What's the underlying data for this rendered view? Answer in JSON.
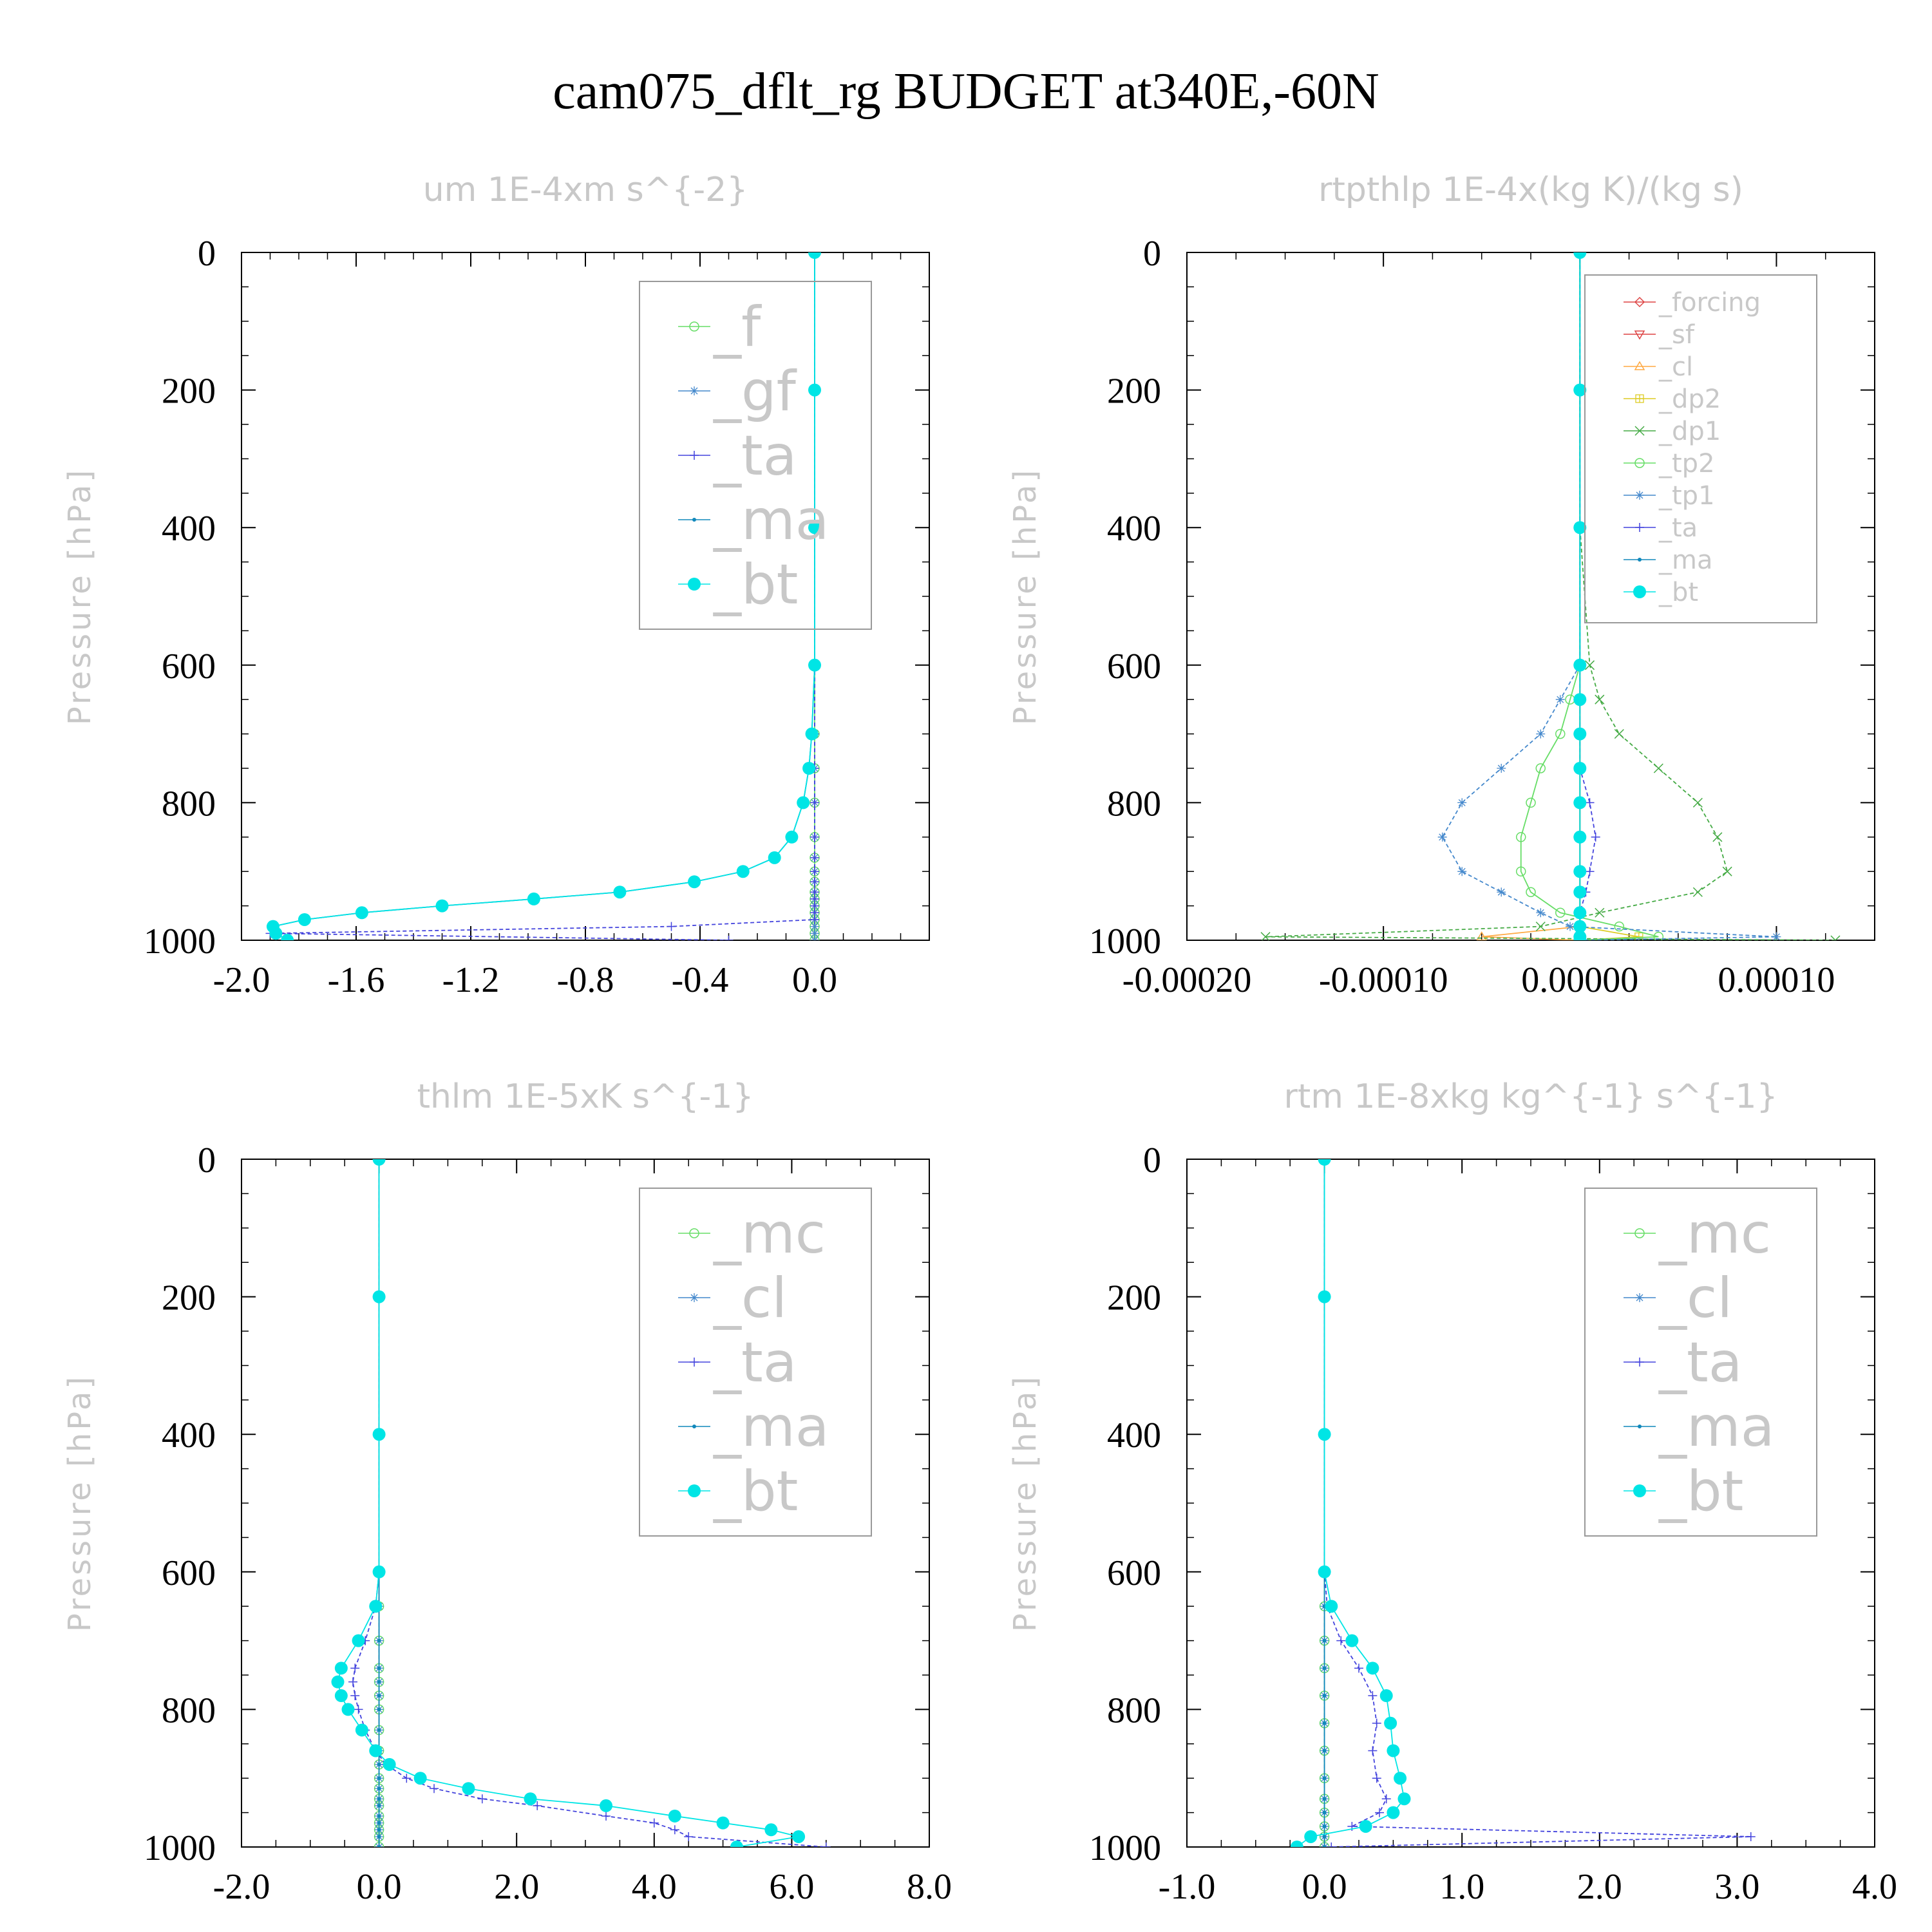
{
  "title": "cam075_dflt_rg  BUDGET at340E,-60N",
  "chart_data": [
    {
      "type": "line",
      "title": "um  1E-4xm s^{-2}",
      "ylabel": "Pressure [hPa]",
      "xlim": [
        -2.0,
        0.4
      ],
      "ylim": [
        1000,
        0
      ],
      "xticks": [
        -2.0,
        -1.6,
        -1.2,
        -0.8,
        -0.4,
        0.0
      ],
      "xtick_labels": [
        "-2.0",
        "-1.6",
        "-1.2",
        "-0.8",
        "-0.4",
        "0.0"
      ],
      "yticks": [
        0,
        200,
        400,
        600,
        800,
        1000
      ],
      "ytick_labels": [
        "0",
        "200",
        "400",
        "600",
        "800",
        "1000"
      ],
      "legend_position": "top-right",
      "y": [
        0,
        200,
        400,
        600,
        700,
        750,
        800,
        850,
        880,
        900,
        915,
        930,
        940,
        950,
        960,
        970,
        980,
        990,
        1000
      ],
      "series": [
        {
          "name": "_f",
          "color": "#66dd66",
          "marker": "circle-open",
          "values": [
            0.0,
            0.0,
            0.0,
            0.0,
            0.0,
            0.0,
            0.0,
            0.0,
            0.0,
            0.0,
            0.0,
            0.0,
            0.0,
            0.0,
            0.0,
            0.0,
            0.0,
            0.0,
            0.0
          ]
        },
        {
          "name": "_gf",
          "color": "#4488cc",
          "marker": "star",
          "values": [
            0.0,
            0.0,
            0.0,
            0.0,
            0.0,
            0.0,
            0.0,
            0.0,
            0.0,
            0.0,
            0.0,
            0.0,
            0.0,
            0.0,
            0.0,
            0.0,
            0.0,
            0.0,
            0.0
          ]
        },
        {
          "name": "_ta",
          "color": "#4444dd",
          "marker": "plus",
          "values": [
            0.0,
            0.0,
            0.0,
            0.0,
            0.0,
            0.0,
            0.0,
            0.0,
            0.0,
            0.0,
            0.0,
            0.0,
            0.0,
            0.0,
            0.0,
            0.0,
            -0.5,
            -1.9,
            -0.3
          ]
        },
        {
          "name": "_ma",
          "color": "#1188bb",
          "marker": "dot",
          "values": [
            0.0,
            0.0,
            0.0,
            0.0,
            -0.01,
            -0.02,
            -0.04,
            -0.08,
            -0.14,
            -0.25,
            -0.42,
            -0.68,
            -0.98,
            -1.3,
            -1.58,
            -1.78,
            -1.89,
            -1.88,
            -1.84
          ]
        },
        {
          "name": "_bt",
          "color": "#00e5e5",
          "marker": "filled-circle",
          "values": [
            0.0,
            0.0,
            0.0,
            0.0,
            -0.01,
            -0.02,
            -0.04,
            -0.08,
            -0.14,
            -0.25,
            -0.42,
            -0.68,
            -0.98,
            -1.3,
            -1.58,
            -1.78,
            -1.89,
            -1.88,
            -1.84
          ]
        }
      ]
    },
    {
      "type": "line",
      "title": "rtpthlp  1E-4x(kg K)/(kg s)",
      "ylabel": "Pressure [hPa]",
      "xlim": [
        -0.0002,
        0.00015
      ],
      "ylim": [
        1000,
        0
      ],
      "xticks": [
        -0.0002,
        -0.0001,
        0.0,
        0.0001
      ],
      "xtick_labels": [
        "-0.00020",
        "-0.00010",
        "0.00000",
        "0.00010"
      ],
      "yticks": [
        0,
        200,
        400,
        600,
        800,
        1000
      ],
      "ytick_labels": [
        "0",
        "200",
        "400",
        "600",
        "800",
        "1000"
      ],
      "legend_position": "top-right",
      "y": [
        0,
        200,
        400,
        600,
        650,
        700,
        750,
        800,
        850,
        900,
        930,
        960,
        980,
        995,
        1000
      ],
      "series": [
        {
          "name": "_forcing",
          "color": "#dd4444",
          "marker": "diamond",
          "values": [
            0,
            0,
            0,
            0,
            0,
            0,
            0,
            0,
            0,
            0,
            0,
            0,
            0,
            0,
            0
          ]
        },
        {
          "name": "_sf",
          "color": "#dd4444",
          "marker": "triangle-down",
          "values": [
            0,
            0,
            0,
            0,
            0,
            0,
            0,
            0,
            0,
            0,
            0,
            0,
            0,
            0,
            0
          ]
        },
        {
          "name": "_cl",
          "color": "#ffaa44",
          "marker": "triangle-up",
          "values": [
            0,
            0,
            0,
            0,
            0,
            0,
            0,
            0,
            0,
            0,
            0,
            0,
            0,
            -5e-05,
            0
          ]
        },
        {
          "name": "_dp2",
          "color": "#ddcc22",
          "marker": "square-plus",
          "values": [
            0,
            0,
            0,
            0,
            0,
            0,
            0,
            0,
            0,
            0,
            0,
            0,
            0,
            3e-05,
            0
          ]
        },
        {
          "name": "_dp1",
          "color": "#44aa44",
          "marker": "cross",
          "values": [
            0,
            0,
            0,
            5e-06,
            1e-05,
            2e-05,
            4e-05,
            6e-05,
            7e-05,
            7.5e-05,
            6e-05,
            1e-05,
            -2e-05,
            -0.00016,
            0.00013
          ]
        },
        {
          "name": "_tp2",
          "color": "#66dd66",
          "marker": "circle-open",
          "values": [
            0,
            0,
            0,
            0,
            -5e-06,
            -1e-05,
            -2e-05,
            -2.5e-05,
            -3e-05,
            -3e-05,
            -2.5e-05,
            -1e-05,
            2e-05,
            4e-05,
            0
          ]
        },
        {
          "name": "_tp1",
          "color": "#4488cc",
          "marker": "star",
          "values": [
            0,
            0,
            0,
            0,
            -1e-05,
            -2e-05,
            -4e-05,
            -6e-05,
            -7e-05,
            -6e-05,
            -4e-05,
            -2e-05,
            -5e-06,
            0.0001,
            0
          ]
        },
        {
          "name": "_ta",
          "color": "#4444dd",
          "marker": "plus",
          "values": [
            0,
            0,
            0,
            0,
            0,
            0,
            0,
            5e-06,
            8e-06,
            5e-06,
            3e-06,
            0,
            0,
            0,
            0
          ]
        },
        {
          "name": "_ma",
          "color": "#1188bb",
          "marker": "dot",
          "values": [
            0,
            0,
            0,
            0,
            0,
            0,
            0,
            0,
            0,
            0,
            0,
            0,
            0,
            0,
            0
          ]
        },
        {
          "name": "_bt",
          "color": "#00e5e5",
          "marker": "filled-circle",
          "values": [
            0,
            0,
            0,
            0,
            0,
            0,
            0,
            0,
            0,
            0,
            0,
            0,
            0,
            0,
            0
          ]
        }
      ]
    },
    {
      "type": "line",
      "title": "thlm  1E-5xK s^{-1}",
      "ylabel": "Pressure [hPa]",
      "xlim": [
        -2.0,
        8.0
      ],
      "ylim": [
        1000,
        0
      ],
      "xticks": [
        -2.0,
        0.0,
        2.0,
        4.0,
        6.0,
        8.0
      ],
      "xtick_labels": [
        "-2.0",
        "0.0",
        "2.0",
        "4.0",
        "6.0",
        "8.0"
      ],
      "yticks": [
        0,
        200,
        400,
        600,
        800,
        1000
      ],
      "ytick_labels": [
        "0",
        "200",
        "400",
        "600",
        "800",
        "1000"
      ],
      "legend_position": "top-right",
      "y": [
        0,
        200,
        400,
        600,
        650,
        700,
        740,
        760,
        780,
        800,
        830,
        860,
        880,
        900,
        915,
        930,
        940,
        955,
        965,
        975,
        985,
        1000
      ],
      "series": [
        {
          "name": "_mc",
          "color": "#66dd66",
          "marker": "circle-open",
          "values": [
            0,
            0,
            0,
            0,
            0,
            0,
            0,
            0,
            0,
            0,
            0,
            0,
            0,
            0,
            0,
            0,
            0,
            0,
            0,
            0,
            0,
            0
          ]
        },
        {
          "name": "_cl",
          "color": "#4488cc",
          "marker": "star",
          "values": [
            0,
            0,
            0,
            0,
            0,
            0,
            0,
            0,
            0,
            0,
            0,
            0,
            0,
            0,
            0,
            0,
            0,
            0,
            0,
            0,
            0,
            0
          ]
        },
        {
          "name": "_ta",
          "color": "#4444dd",
          "marker": "plus",
          "values": [
            0,
            0,
            0,
            0,
            -0.05,
            -0.2,
            -0.35,
            -0.38,
            -0.35,
            -0.3,
            -0.2,
            -0.05,
            0.1,
            0.4,
            0.8,
            1.5,
            2.3,
            3.3,
            4.0,
            4.3,
            4.5,
            6.5
          ]
        },
        {
          "name": "_ma",
          "color": "#1188bb",
          "marker": "dot",
          "values": [
            0,
            0,
            0,
            0,
            0,
            0,
            0,
            0,
            0,
            0,
            0,
            0,
            0,
            0,
            0,
            0,
            0,
            0,
            0,
            0,
            0,
            0
          ]
        },
        {
          "name": "_bt",
          "color": "#00e5e5",
          "marker": "filled-circle",
          "values": [
            0,
            0,
            0,
            0,
            -0.05,
            -0.3,
            -0.55,
            -0.6,
            -0.55,
            -0.45,
            -0.25,
            -0.05,
            0.15,
            0.6,
            1.3,
            2.2,
            3.3,
            4.3,
            5.0,
            5.7,
            6.1,
            5.2
          ]
        }
      ]
    },
    {
      "type": "line",
      "title": "rtm  1E-8xkg kg^{-1} s^{-1}",
      "ylabel": "Pressure [hPa]",
      "xlim": [
        -1.0,
        4.0
      ],
      "ylim": [
        1000,
        0
      ],
      "xticks": [
        -1.0,
        0.0,
        1.0,
        2.0,
        3.0,
        4.0
      ],
      "xtick_labels": [
        "-1.0",
        "0.0",
        "1.0",
        "2.0",
        "3.0",
        "4.0"
      ],
      "yticks": [
        0,
        200,
        400,
        600,
        800,
        1000
      ],
      "ytick_labels": [
        "0",
        "200",
        "400",
        "600",
        "800",
        "1000"
      ],
      "legend_position": "top-right",
      "y": [
        0,
        200,
        400,
        600,
        650,
        700,
        740,
        780,
        820,
        860,
        900,
        930,
        950,
        970,
        985,
        1000
      ],
      "series": [
        {
          "name": "_mc",
          "color": "#66dd66",
          "marker": "circle-open",
          "values": [
            0,
            0,
            0,
            0,
            0,
            0,
            0,
            0,
            0,
            0,
            0,
            0,
            0,
            0,
            0,
            0
          ]
        },
        {
          "name": "_cl",
          "color": "#4488cc",
          "marker": "star",
          "values": [
            0,
            0,
            0,
            0,
            0,
            0,
            0,
            0,
            0,
            0,
            0,
            0,
            0,
            0,
            0,
            0
          ]
        },
        {
          "name": "_ta",
          "color": "#4444dd",
          "marker": "plus",
          "values": [
            0,
            0,
            0,
            0,
            0.02,
            0.12,
            0.25,
            0.35,
            0.38,
            0.35,
            0.38,
            0.45,
            0.4,
            0.2,
            3.1,
            0.05
          ]
        },
        {
          "name": "_ma",
          "color": "#1188bb",
          "marker": "dot",
          "values": [
            0,
            0,
            0,
            0,
            0,
            0,
            0,
            0,
            0,
            0,
            0,
            0,
            0,
            0,
            0,
            0
          ]
        },
        {
          "name": "_bt",
          "color": "#00e5e5",
          "marker": "filled-circle",
          "values": [
            0,
            0,
            0,
            0,
            0.05,
            0.2,
            0.35,
            0.45,
            0.48,
            0.5,
            0.55,
            0.58,
            0.5,
            0.3,
            -0.1,
            -0.2
          ]
        }
      ]
    }
  ]
}
